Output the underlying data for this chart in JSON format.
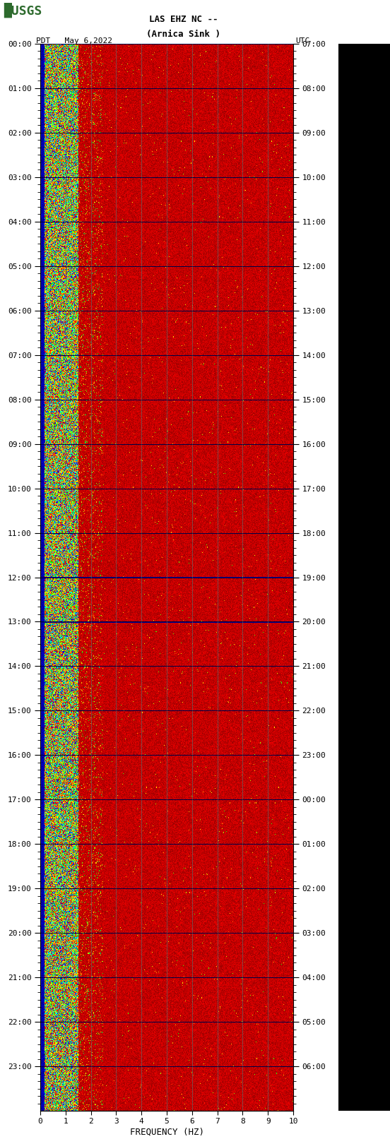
{
  "title_line1": "LAS EHZ NC --",
  "title_line2": "(Arnica Sink )",
  "left_label": "PDT   May 6,2022",
  "right_label": "UTC",
  "xlabel": "FREQUENCY (HZ)",
  "pdt_times": [
    "00:00",
    "01:00",
    "02:00",
    "03:00",
    "04:00",
    "05:00",
    "06:00",
    "07:00",
    "08:00",
    "09:00",
    "10:00",
    "11:00",
    "12:00",
    "13:00",
    "14:00",
    "15:00",
    "16:00",
    "17:00",
    "18:00",
    "19:00",
    "20:00",
    "21:00",
    "22:00",
    "23:00"
  ],
  "utc_times": [
    "07:00",
    "08:00",
    "09:00",
    "10:00",
    "11:00",
    "12:00",
    "13:00",
    "14:00",
    "15:00",
    "16:00",
    "17:00",
    "18:00",
    "19:00",
    "20:00",
    "21:00",
    "22:00",
    "23:00",
    "00:00",
    "01:00",
    "02:00",
    "03:00",
    "04:00",
    "05:00",
    "06:00"
  ],
  "freq_min": 0,
  "freq_max": 10,
  "freq_ticks": [
    0,
    1,
    2,
    3,
    4,
    5,
    6,
    7,
    8,
    9,
    10
  ],
  "n_time_steps": 1440,
  "n_freq_steps": 500,
  "usgs_green": "#2d6a2d",
  "fig_bg": "#ffffff",
  "plot_bg": "#8b0000",
  "dark_red": "#8b0000",
  "vertical_grid_color": "#666666",
  "vertical_grid_positions": [
    1,
    2,
    3,
    4,
    5,
    6,
    7,
    8,
    9
  ],
  "blue_stripe_hz": 0.15,
  "cyan_band_hz": 1.5,
  "scatter_band_hz": 2.5
}
